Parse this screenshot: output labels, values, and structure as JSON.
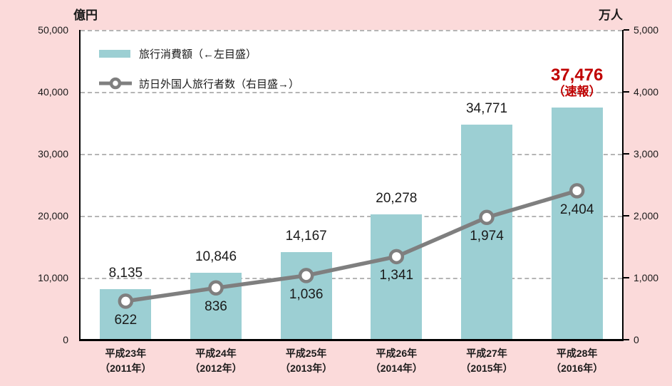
{
  "colors": {
    "background": "#FBDADA",
    "bar": "#9CCFD3",
    "line": "#7F7F7F",
    "marker_fill": "#FFFFFF",
    "accent_red": "#C00000",
    "grid": "#B5B5B5",
    "axis": "#000000"
  },
  "chart_data": {
    "type": "combo (bar + line)",
    "categories": [
      {
        "era": "平成23年",
        "western": "（2011年）"
      },
      {
        "era": "平成24年",
        "western": "（2012年）"
      },
      {
        "era": "平成25年",
        "western": "（2013年）"
      },
      {
        "era": "平成26年",
        "western": "（2014年）"
      },
      {
        "era": "平成27年",
        "western": "（2015年）"
      },
      {
        "era": "平成28年",
        "western": "（2016年）"
      }
    ],
    "series": [
      {
        "name": "旅行消費額（←左目盛）",
        "type": "bar",
        "axis": "left",
        "values": [
          8135,
          10846,
          14167,
          20278,
          34771,
          37476
        ],
        "labels": [
          "8,135",
          "10,846",
          "14,167",
          "20,278",
          "34,771",
          "37,476"
        ],
        "last_label_note": "（速報）"
      },
      {
        "name": "訪日外国人旅行者数（右目盛→）",
        "type": "line",
        "axis": "right",
        "values": [
          622,
          836,
          1036,
          1341,
          1974,
          2404
        ],
        "labels": [
          "622",
          "836",
          "1,036",
          "1,341",
          "1,974",
          "2,404"
        ]
      }
    ],
    "left_axis": {
      "title": "億円",
      "min": 0,
      "max": 50000,
      "tick_labels": [
        "50,000",
        "40,000",
        "30,000",
        "20,000",
        "10,000",
        "0"
      ]
    },
    "right_axis": {
      "title": "万人",
      "min": 0,
      "max": 5000,
      "tick_labels": [
        "5,000",
        "4,000",
        "3,000",
        "2,000",
        "1,000",
        "0"
      ]
    },
    "grid": "horizontal dashed",
    "legend_position": "top-left inside plot"
  }
}
